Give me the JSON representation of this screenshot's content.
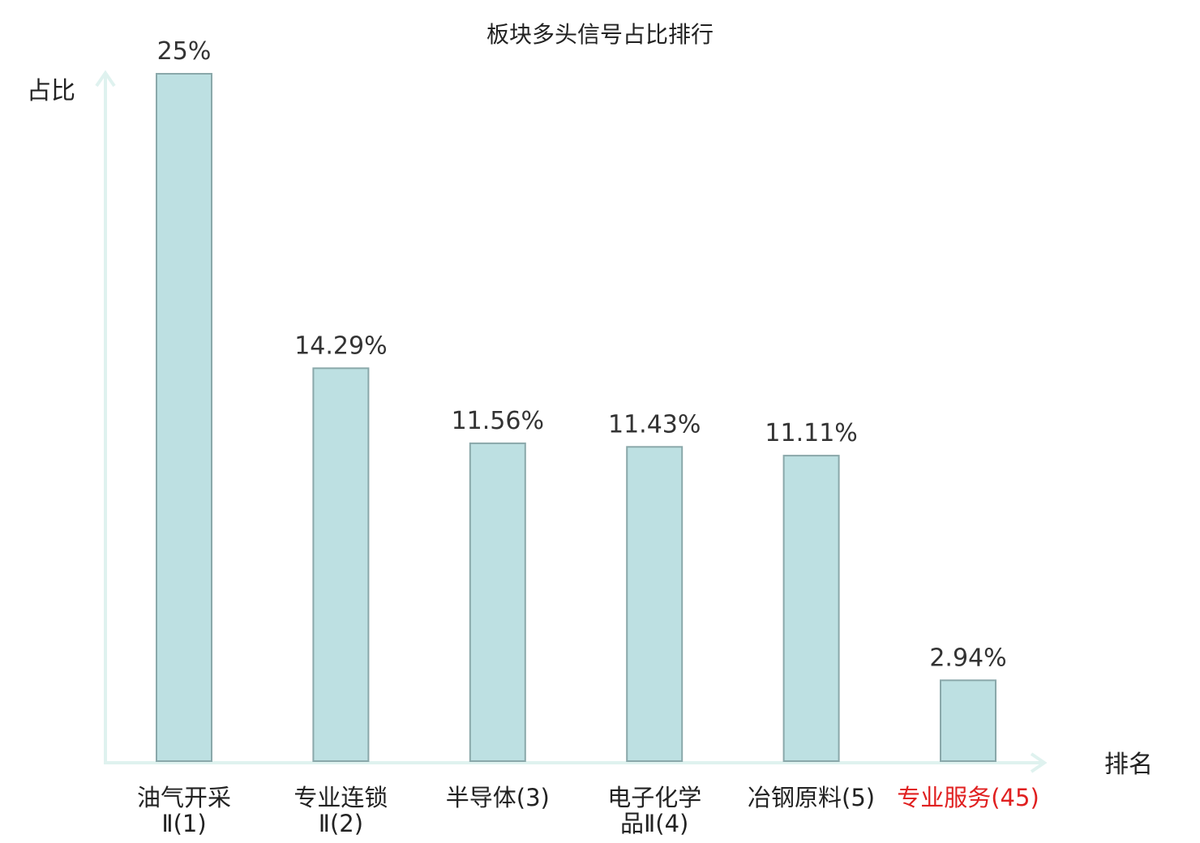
{
  "chart_data": {
    "type": "bar",
    "title": "板块多头信号占比排行",
    "ylabel": "占比",
    "xlabel": "排名",
    "ylim": [
      0,
      25
    ],
    "grid": false,
    "legend": "none",
    "categories": [
      {
        "lines": [
          "油气开采",
          "Ⅱ(1)"
        ],
        "highlight": false
      },
      {
        "lines": [
          "专业连锁",
          "Ⅱ(2)"
        ],
        "highlight": false
      },
      {
        "lines": [
          "半导体(3)"
        ],
        "highlight": false
      },
      {
        "lines": [
          "电子化学",
          "品Ⅱ(4)"
        ],
        "highlight": false
      },
      {
        "lines": [
          "冶钢原料(5)"
        ],
        "highlight": false
      },
      {
        "lines": [
          "专业服务(45)"
        ],
        "highlight": true
      }
    ],
    "values": [
      25,
      14.29,
      11.56,
      11.43,
      11.11,
      2.94
    ],
    "value_labels": [
      "25%",
      "14.29%",
      "11.56%",
      "11.43%",
      "11.11%",
      "2.94%"
    ],
    "colors": {
      "bar": "#bde0e2",
      "bar_edge": "#8aa8aa",
      "axis": "#dff2ef",
      "highlight": "#e02020"
    }
  }
}
